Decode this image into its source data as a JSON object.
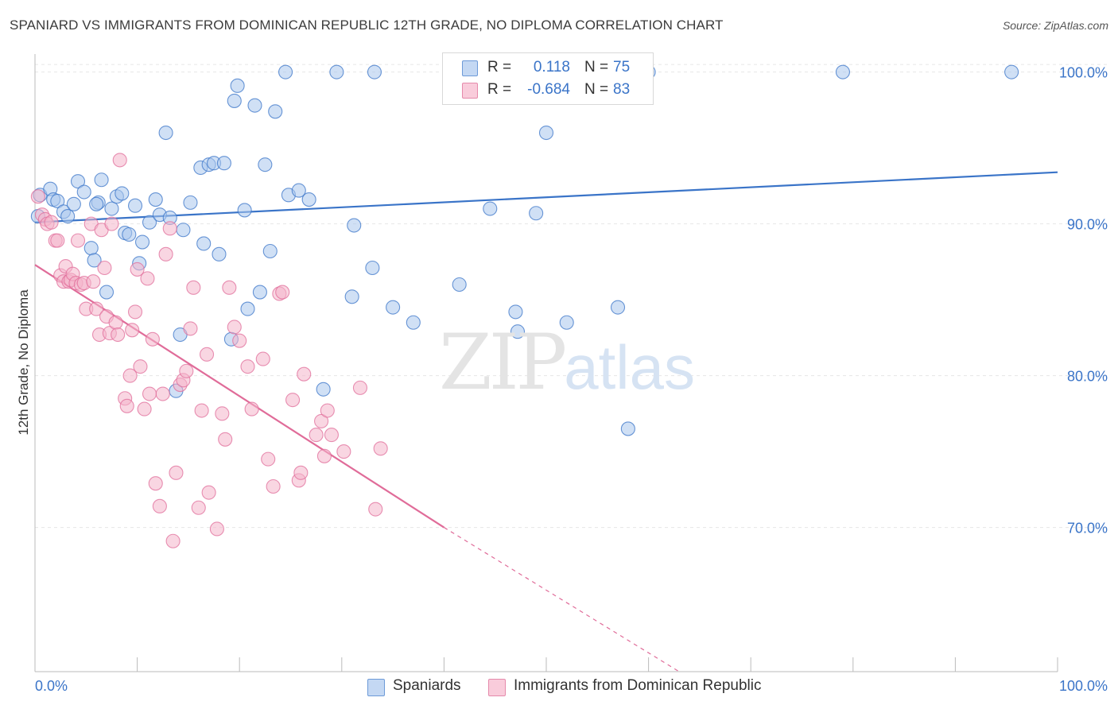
{
  "title": "SPANIARD VS IMMIGRANTS FROM DOMINICAN REPUBLIC 12TH GRADE, NO DIPLOMA CORRELATION CHART",
  "source": "Source: ZipAtlas.com",
  "watermark": {
    "zip": "ZIP",
    "atlas": "atlas"
  },
  "colors": {
    "blue": "#3a74c8",
    "blue_fill": "#a9c6ec",
    "pink": "#e06c99",
    "pink_fill": "#f4b5cb",
    "grid": "#e6e6e6",
    "axis_text": "#3a74c8"
  },
  "legend": {
    "r_label": "R =",
    "n_label": "N =",
    "rows": [
      {
        "r": "0.118",
        "n": "75"
      },
      {
        "r": "-0.684",
        "n": "83"
      }
    ]
  },
  "chart_data": {
    "type": "scatter",
    "xlabel": "",
    "ylabel": "12th Grade, No Diploma",
    "xlim": [
      0,
      100
    ],
    "ylim": [
      60.5,
      101.5
    ],
    "x_tick_labels": [
      "0.0%",
      "100.0%"
    ],
    "y_ticks": [
      70,
      80,
      90,
      100
    ],
    "y_tick_labels": [
      "70.0%",
      "80.0%",
      "90.0%",
      "100.0%"
    ],
    "grid": true,
    "legend_position": "bottom",
    "series": [
      {
        "name": "Spaniards",
        "color": "#3a74c8",
        "trend": {
          "x0": 0,
          "y0": 90.1,
          "x1": 100,
          "y1": 93.4
        },
        "points": [
          [
            0.5,
            91.9
          ],
          [
            1.5,
            92.3
          ],
          [
            1.8,
            91.6
          ],
          [
            2.2,
            91.5
          ],
          [
            2.8,
            90.8
          ],
          [
            3.2,
            90.5
          ],
          [
            3.8,
            91.3
          ],
          [
            4.2,
            92.8
          ],
          [
            4.8,
            92.1
          ],
          [
            5.5,
            88.4
          ],
          [
            5.8,
            87.6
          ],
          [
            6.2,
            91.4
          ],
          [
            6.5,
            92.9
          ],
          [
            7.0,
            85.5
          ],
          [
            7.5,
            91.0
          ],
          [
            8.0,
            91.8
          ],
          [
            8.5,
            92.0
          ],
          [
            8.8,
            89.4
          ],
          [
            9.2,
            89.3
          ],
          [
            9.8,
            91.2
          ],
          [
            10.2,
            87.4
          ],
          [
            10.5,
            88.8
          ],
          [
            11.2,
            90.1
          ],
          [
            11.8,
            91.6
          ],
          [
            12.2,
            90.6
          ],
          [
            12.8,
            96.0
          ],
          [
            13.2,
            90.4
          ],
          [
            14.2,
            82.7
          ],
          [
            14.5,
            89.6
          ],
          [
            15.2,
            91.4
          ],
          [
            16.2,
            93.7
          ],
          [
            16.5,
            88.7
          ],
          [
            17.0,
            93.9
          ],
          [
            17.5,
            94.0
          ],
          [
            18.0,
            88.0
          ],
          [
            18.5,
            94.0
          ],
          [
            19.2,
            82.4
          ],
          [
            19.5,
            98.1
          ],
          [
            19.8,
            99.1
          ],
          [
            20.5,
            90.9
          ],
          [
            20.8,
            84.4
          ],
          [
            21.5,
            97.8
          ],
          [
            22.0,
            85.5
          ],
          [
            22.5,
            93.9
          ],
          [
            23.0,
            88.2
          ],
          [
            23.5,
            97.4
          ],
          [
            24.5,
            100.0
          ],
          [
            24.8,
            91.9
          ],
          [
            25.8,
            92.2
          ],
          [
            26.8,
            91.6
          ],
          [
            28.2,
            79.1
          ],
          [
            29.5,
            100.0
          ],
          [
            31.0,
            85.2
          ],
          [
            31.2,
            89.9
          ],
          [
            33.2,
            100.0
          ],
          [
            33.0,
            87.1
          ],
          [
            35.0,
            84.5
          ],
          [
            37.0,
            83.5
          ],
          [
            41.0,
            100.0
          ],
          [
            41.5,
            86.0
          ],
          [
            44.0,
            100.0
          ],
          [
            44.5,
            91.0
          ],
          [
            47.0,
            84.2
          ],
          [
            47.2,
            82.9
          ],
          [
            49.0,
            90.7
          ],
          [
            50.0,
            96.0
          ],
          [
            52.0,
            83.5
          ],
          [
            57.0,
            84.5
          ],
          [
            58.0,
            76.5
          ],
          [
            60.0,
            100.0
          ],
          [
            79.0,
            100.0
          ],
          [
            95.5,
            100.0
          ],
          [
            13.8,
            79.0
          ],
          [
            6.0,
            91.3
          ],
          [
            0.3,
            90.5
          ]
        ]
      },
      {
        "name": "Immigrants from Dominican Republic",
        "color": "#e06c99",
        "trend": {
          "x0": 0,
          "y0": 87.3,
          "x1": 40,
          "y1": 70.0,
          "dash_x1": 63,
          "dash_y1": 60.5
        },
        "points": [
          [
            0.3,
            91.8
          ],
          [
            0.7,
            90.6
          ],
          [
            1.0,
            90.3
          ],
          [
            1.2,
            90.0
          ],
          [
            1.6,
            90.1
          ],
          [
            2.0,
            88.9
          ],
          [
            2.2,
            88.9
          ],
          [
            2.5,
            86.6
          ],
          [
            2.8,
            86.2
          ],
          [
            3.0,
            87.2
          ],
          [
            3.3,
            86.2
          ],
          [
            3.5,
            86.3
          ],
          [
            3.7,
            86.7
          ],
          [
            4.0,
            86.1
          ],
          [
            4.2,
            88.9
          ],
          [
            4.5,
            86.0
          ],
          [
            4.8,
            86.1
          ],
          [
            5.0,
            84.4
          ],
          [
            5.5,
            90.0
          ],
          [
            5.7,
            86.2
          ],
          [
            6.0,
            84.4
          ],
          [
            6.3,
            82.7
          ],
          [
            6.5,
            89.6
          ],
          [
            6.8,
            87.1
          ],
          [
            7.0,
            83.9
          ],
          [
            7.3,
            82.8
          ],
          [
            7.5,
            90.0
          ],
          [
            7.9,
            83.5
          ],
          [
            8.1,
            82.7
          ],
          [
            8.3,
            94.2
          ],
          [
            8.8,
            78.5
          ],
          [
            9.0,
            78.0
          ],
          [
            9.3,
            80.0
          ],
          [
            9.5,
            83.0
          ],
          [
            9.8,
            84.2
          ],
          [
            10.0,
            87.0
          ],
          [
            10.3,
            80.6
          ],
          [
            10.7,
            77.8
          ],
          [
            11.0,
            86.4
          ],
          [
            11.2,
            78.8
          ],
          [
            11.5,
            82.4
          ],
          [
            11.8,
            72.9
          ],
          [
            12.2,
            71.4
          ],
          [
            12.5,
            78.8
          ],
          [
            12.8,
            88.0
          ],
          [
            13.2,
            89.7
          ],
          [
            13.5,
            69.1
          ],
          [
            13.8,
            73.6
          ],
          [
            14.2,
            79.4
          ],
          [
            14.5,
            79.7
          ],
          [
            14.8,
            80.3
          ],
          [
            15.2,
            83.1
          ],
          [
            15.5,
            85.8
          ],
          [
            16.0,
            71.3
          ],
          [
            16.3,
            77.7
          ],
          [
            16.8,
            81.4
          ],
          [
            17.0,
            72.3
          ],
          [
            17.8,
            69.9
          ],
          [
            18.3,
            77.5
          ],
          [
            18.6,
            75.8
          ],
          [
            19.0,
            85.8
          ],
          [
            19.5,
            83.2
          ],
          [
            20.0,
            82.3
          ],
          [
            20.8,
            80.6
          ],
          [
            21.2,
            77.8
          ],
          [
            22.3,
            81.1
          ],
          [
            22.8,
            74.5
          ],
          [
            23.3,
            72.7
          ],
          [
            23.9,
            85.4
          ],
          [
            24.2,
            85.5
          ],
          [
            25.2,
            78.4
          ],
          [
            25.8,
            73.1
          ],
          [
            26.0,
            73.6
          ],
          [
            26.3,
            80.1
          ],
          [
            27.5,
            76.1
          ],
          [
            28.0,
            77.0
          ],
          [
            28.3,
            74.7
          ],
          [
            28.6,
            77.7
          ],
          [
            29.0,
            76.1
          ],
          [
            30.2,
            75.0
          ],
          [
            31.8,
            79.2
          ],
          [
            33.3,
            71.2
          ],
          [
            33.8,
            75.2
          ]
        ]
      }
    ]
  }
}
